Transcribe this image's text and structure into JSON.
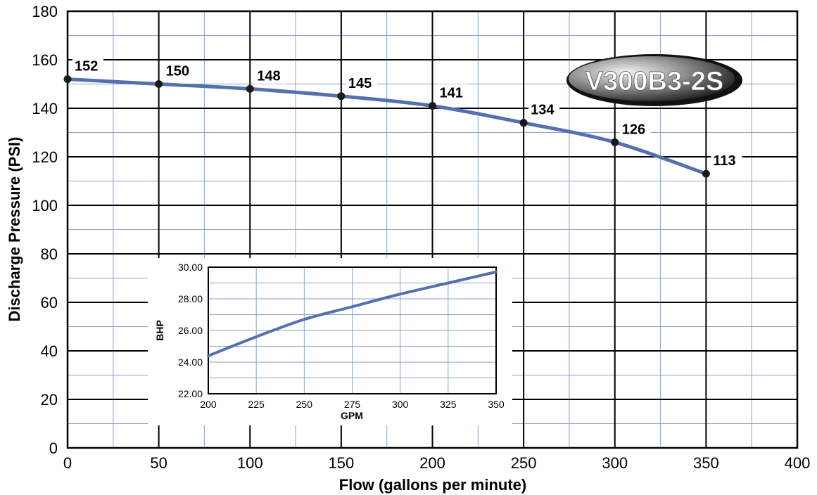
{
  "chart_data": [
    {
      "type": "line",
      "xlabel": "Flow (gallons per minute)",
      "ylabel": "Discharge Pressure (PSI)",
      "xlim": [
        0,
        400
      ],
      "ylim": [
        0,
        180
      ],
      "x_ticks": [
        "0",
        "50",
        "100",
        "150",
        "200",
        "250",
        "300",
        "350",
        "400"
      ],
      "y_ticks": [
        "0",
        "20",
        "40",
        "60",
        "80",
        "100",
        "120",
        "140",
        "160",
        "180"
      ],
      "grid": true,
      "badge": "V300B3-2S",
      "x": [
        0,
        50,
        100,
        150,
        200,
        250,
        300,
        350
      ],
      "series": [
        {
          "values": [
            152,
            150,
            148,
            145,
            141,
            134,
            126,
            113
          ],
          "labels": [
            "152",
            "150",
            "148",
            "145",
            "141",
            "134",
            "126",
            "113"
          ]
        }
      ],
      "colors": {
        "line": "#5470b0",
        "point": "#1a1a1a",
        "major_grid": "#000000",
        "minor_grid": "#8c9fd0"
      }
    },
    {
      "type": "line",
      "xlabel": "GPM",
      "ylabel": "BHP",
      "xlim": [
        200,
        350
      ],
      "ylim": [
        22,
        30
      ],
      "x_ticks": [
        "200",
        "225",
        "250",
        "275",
        "300",
        "325",
        "350"
      ],
      "y_ticks": [
        "22.00",
        "24.00",
        "26.00",
        "28.00",
        "30.00"
      ],
      "grid": true,
      "x": [
        200,
        225,
        250,
        275,
        300,
        325,
        350
      ],
      "series": [
        {
          "values": [
            24.4,
            25.6,
            26.7,
            27.5,
            28.3,
            29.0,
            29.7
          ]
        }
      ]
    }
  ]
}
